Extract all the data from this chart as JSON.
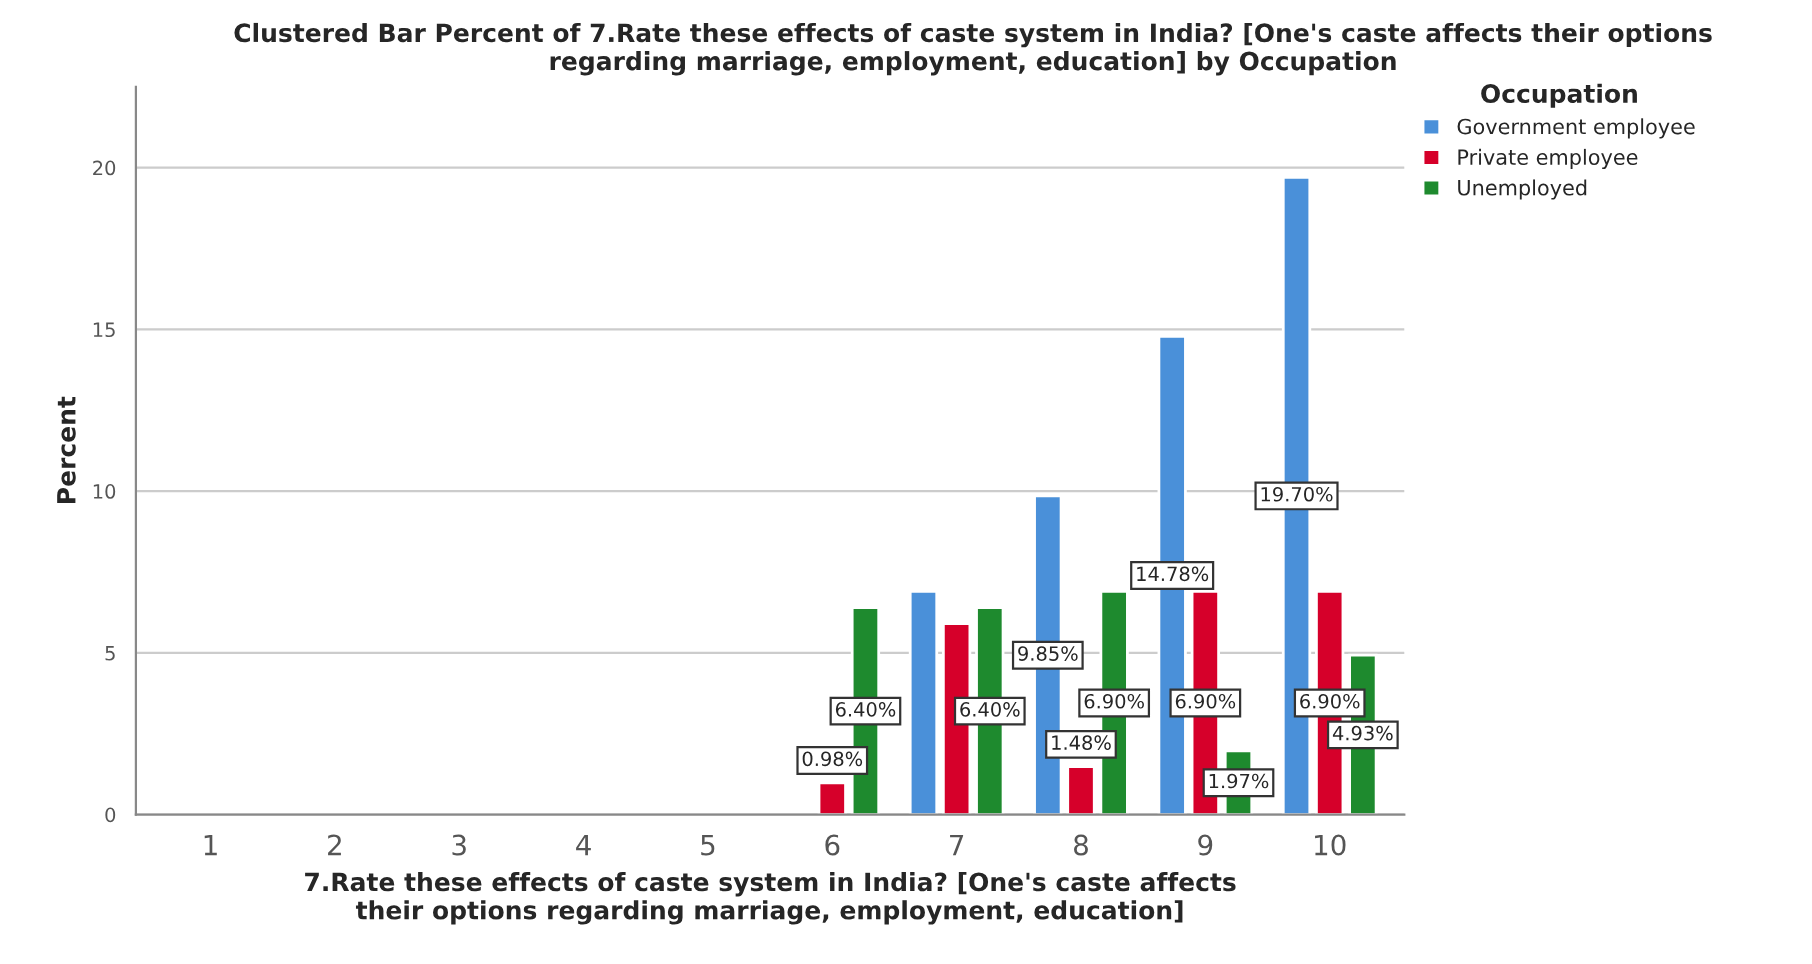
{
  "chart_data": {
    "type": "bar",
    "title": "Clustered Bar Percent of 7.Rate these effects of caste system in India? [One's caste affects their options\nregarding marriage, employment, education] by Occupation",
    "xlabel": "7.Rate these effects of caste system in India? [One's caste affects\ntheir options regarding marriage, employment, education]",
    "ylabel": "Percent",
    "legend_title": "Occupation",
    "categories": [
      "1",
      "2",
      "3",
      "4",
      "5",
      "6",
      "7",
      "8",
      "9",
      "10"
    ],
    "series": [
      {
        "name": "Government employee",
        "color": "#4a90d9",
        "values": [
          null,
          null,
          null,
          null,
          null,
          null,
          6.9,
          9.85,
          14.78,
          19.7
        ],
        "value_labels": [
          null,
          null,
          null,
          null,
          null,
          null,
          null,
          "9.85%",
          "14.78%",
          "19.70%"
        ]
      },
      {
        "name": "Private employee",
        "color": "#d6002a",
        "values": [
          null,
          null,
          null,
          null,
          null,
          0.98,
          5.9,
          1.48,
          6.9,
          6.9
        ],
        "value_labels": [
          null,
          null,
          null,
          null,
          null,
          "0.98%",
          null,
          "1.48%",
          "6.90%",
          "6.90%"
        ]
      },
      {
        "name": "Unemployed",
        "color": "#1e8a2e",
        "values": [
          null,
          null,
          null,
          null,
          null,
          6.4,
          6.4,
          6.9,
          1.97,
          4.93
        ],
        "value_labels": [
          null,
          null,
          null,
          null,
          null,
          "6.40%",
          "6.40%",
          "6.90%",
          "1.97%",
          "4.93%"
        ]
      }
    ],
    "ylim": [
      0,
      22.5
    ],
    "yticks": [
      0,
      5,
      10,
      15,
      20
    ],
    "grid": "y",
    "legend": "top right"
  }
}
